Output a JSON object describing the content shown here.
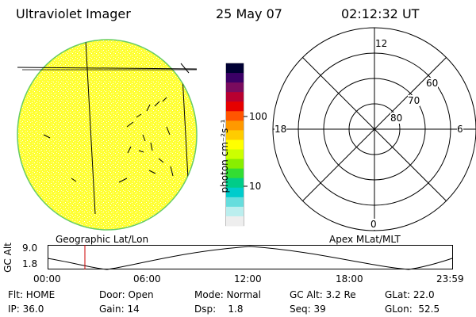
{
  "header": {
    "title": "Ultraviolet Imager",
    "date": "25 May 07",
    "time": "02:12:32 UT"
  },
  "colorbar": {
    "label": "photon cm⁻²s⁻¹",
    "ticks": [
      "100",
      "10"
    ],
    "colors": [
      "#000033",
      "#3b0066",
      "#7a0b5e",
      "#b80030",
      "#e60000",
      "#ff5500",
      "#ff9900",
      "#ffcc00",
      "#ffff00",
      "#ccff00",
      "#88ee00",
      "#33dd33",
      "#00cc88",
      "#00cccc",
      "#66dddd",
      "#bbeeee",
      "#eeeeee"
    ]
  },
  "left_panel": {
    "caption": "Geographic Lat/Lon",
    "fill_color": "#ffff33",
    "rim_color": "#66cc66"
  },
  "right_panel": {
    "caption": "Apex MLat/MLT",
    "mlt_labels": {
      "top": "12",
      "left": "18",
      "right": "6",
      "bottom": "0"
    },
    "mlat_labels": [
      "60",
      "70",
      "80"
    ]
  },
  "altitude_strip": {
    "ylabel": "GC Alt",
    "y_top": "9.0",
    "y_bottom": "1.8",
    "x_ticks": [
      "00:00",
      "06:00",
      "12:00",
      "18:00",
      "23:59"
    ],
    "marker_color": "#cc0000"
  },
  "footer": {
    "rows": [
      [
        "Flt: HOME",
        "Door: Open",
        "Mode: Normal",
        "GC Alt: 3.2 Re",
        "GLat: 22.0"
      ],
      [
        "IP: 36.0",
        "Gain: 14",
        "Dsp:    1.8",
        "Seq: 39",
        "GLon:  52.5"
      ]
    ]
  }
}
